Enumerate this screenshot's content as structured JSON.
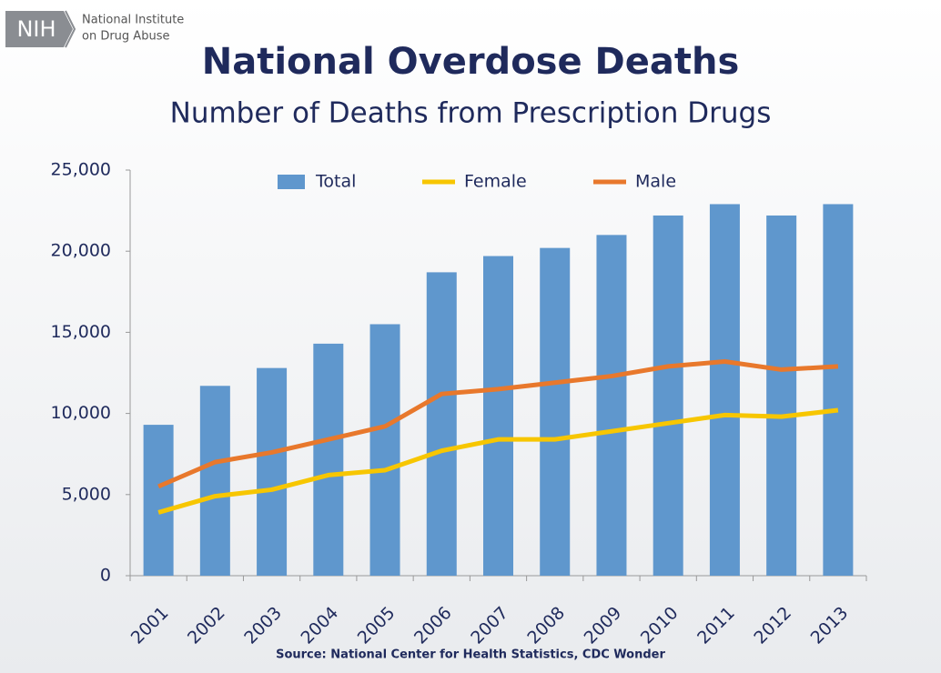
{
  "logo": {
    "abbr": "NIH",
    "name_lines": [
      "National Institute",
      "on Drug Abuse"
    ]
  },
  "chart_data": {
    "type": "bar",
    "title": "National Overdose Deaths",
    "subtitle": "Number of Deaths from Prescription Drugs",
    "source": "Source: National Center for Health Statistics, CDC Wonder",
    "categories": [
      "2001",
      "2002",
      "2003",
      "2004",
      "2005",
      "2006",
      "2007",
      "2008",
      "2009",
      "2010",
      "2011",
      "2012",
      "2013"
    ],
    "series": [
      {
        "name": "Total",
        "type": "bar",
        "color": "#5f97cd",
        "values": [
          9300,
          11700,
          12800,
          14300,
          15500,
          18700,
          19700,
          20200,
          21000,
          22200,
          22900,
          22200,
          22900
        ]
      },
      {
        "name": "Female",
        "type": "line",
        "color": "#f7c600",
        "values": [
          3900,
          4900,
          5300,
          6200,
          6500,
          7700,
          8400,
          8400,
          8900,
          9400,
          9900,
          9800,
          10200
        ]
      },
      {
        "name": "Male",
        "type": "line",
        "color": "#e8782c",
        "values": [
          5500,
          7000,
          7600,
          8400,
          9200,
          11200,
          11500,
          11900,
          12300,
          12900,
          13200,
          12700,
          12900
        ]
      }
    ],
    "ylim": [
      0,
      25000
    ],
    "yticks": [
      0,
      {
        "value": 5000,
        "label": "5,000"
      },
      {
        "value": 10000,
        "label": "10,000"
      },
      {
        "value": 15000,
        "label": "15,000"
      },
      {
        "value": 20000,
        "label": "20,000"
      },
      {
        "value": 25000,
        "label": "25,000"
      }
    ],
    "grid": false,
    "legend": "top"
  }
}
